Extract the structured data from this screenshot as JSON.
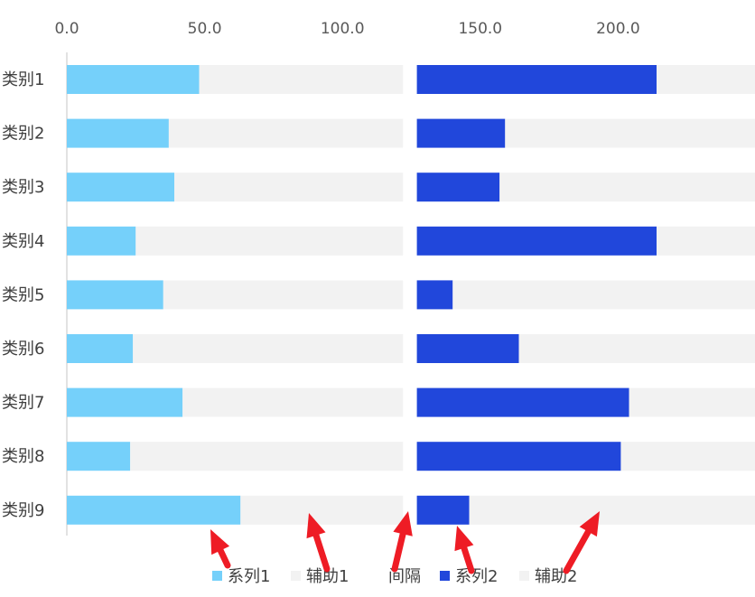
{
  "chart_data": {
    "type": "bar",
    "orientation": "horizontal",
    "stacked": true,
    "categories": [
      "类别1",
      "类别2",
      "类别3",
      "类别4",
      "类别5",
      "类别6",
      "类别7",
      "类别8",
      "类别9"
    ],
    "x_ticks": [
      "0.0",
      "50.0",
      "100.0",
      "150.0",
      "200.0"
    ],
    "xlim": [
      0,
      250
    ],
    "axis_position": "top",
    "grid": false,
    "legend_position": "bottom",
    "total_per_category": 250,
    "series": [
      {
        "name": "系列1",
        "color": "#75D0FA",
        "values": [
          48,
          37,
          39,
          25,
          35,
          24,
          42,
          23,
          63
        ]
      },
      {
        "name": "辅助1",
        "color": "#F2F2F2",
        "values": [
          74,
          85,
          83,
          97,
          87,
          98,
          80,
          99,
          59
        ]
      },
      {
        "name": "间隔",
        "color": "#FFFFFF",
        "values": [
          5,
          5,
          5,
          5,
          5,
          5,
          5,
          5,
          5
        ]
      },
      {
        "name": "系列2",
        "color": "#2147DB",
        "values": [
          87,
          32,
          30,
          87,
          13,
          37,
          77,
          74,
          19
        ]
      },
      {
        "name": "辅助2",
        "color": "#F2F2F2",
        "values": [
          36,
          91,
          93,
          36,
          110,
          86,
          46,
          49,
          104
        ]
      }
    ],
    "annotation_arrow_color": "#EE1C25",
    "title": "",
    "xlabel": "",
    "ylabel": ""
  }
}
